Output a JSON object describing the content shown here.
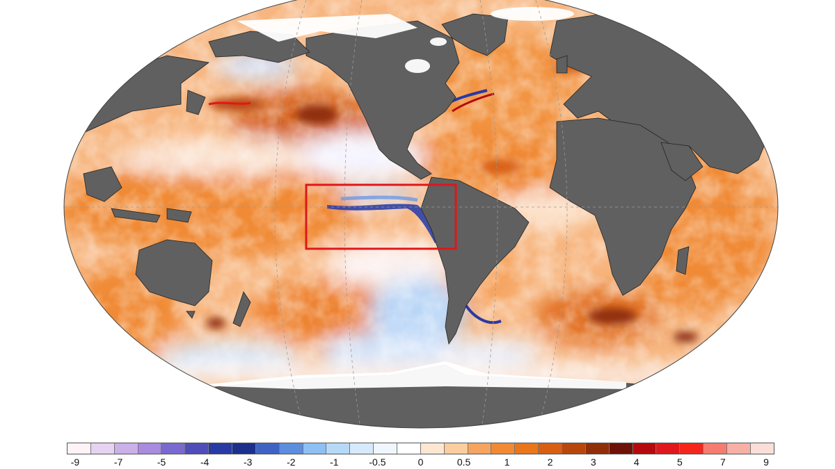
{
  "colors": {
    "ocean_neutral": "#ffffff",
    "land": "#606060",
    "coastline": "#222222",
    "graticule": "#9a9a9a",
    "highlight_box": "#e0161b",
    "warm_light": "#f9c28c",
    "warm_mid": "#f08a34",
    "warm_dark": "#a8440e",
    "cool_light": "#c9defa",
    "cool_mid": "#7fb0ec",
    "cool_dark": "#1c2f9e"
  },
  "map": {
    "projection": "Robinson",
    "highlight_region": "Equatorial eastern Pacific (Niño 3.4 / Niño 3 region)"
  },
  "legend": {
    "swatches": [
      "#fff3f8",
      "#e6d2f1",
      "#cbb0ea",
      "#a98be0",
      "#7a69cf",
      "#4f4db8",
      "#283aa3",
      "#1c2f8c",
      "#3f63c4",
      "#5c8ee0",
      "#8ec0f3",
      "#b7d9f8",
      "#d7eafb",
      "#f0f6ff",
      "#ffffff",
      "#fde7d3",
      "#fbcd9f",
      "#f6a460",
      "#f08a34",
      "#e9761b",
      "#d75e12",
      "#b8470c",
      "#8f2f08",
      "#6e1208",
      "#b50a0d",
      "#e0181b",
      "#f6251b",
      "#f57c70",
      "#f6b0a6",
      "#fbded8"
    ],
    "ticks": [
      {
        "label": "-9",
        "pos": 0
      },
      {
        "label": "-7",
        "pos": 2
      },
      {
        "label": "-5",
        "pos": 4
      },
      {
        "label": "-4",
        "pos": 6
      },
      {
        "label": "-3",
        "pos": 8
      },
      {
        "label": "-2",
        "pos": 10
      },
      {
        "label": "-1",
        "pos": 12
      },
      {
        "label": "-0.5",
        "pos": 14
      },
      {
        "label": "0",
        "pos": 16
      },
      {
        "label": "0.5",
        "pos": 18
      },
      {
        "label": "1",
        "pos": 20
      },
      {
        "label": "2",
        "pos": 22
      },
      {
        "label": "3",
        "pos": 24
      },
      {
        "label": "4",
        "pos": 26
      },
      {
        "label": "5",
        "pos": 28
      },
      {
        "label": "7",
        "pos": 30
      },
      {
        "label": "9",
        "pos": 32
      }
    ]
  }
}
